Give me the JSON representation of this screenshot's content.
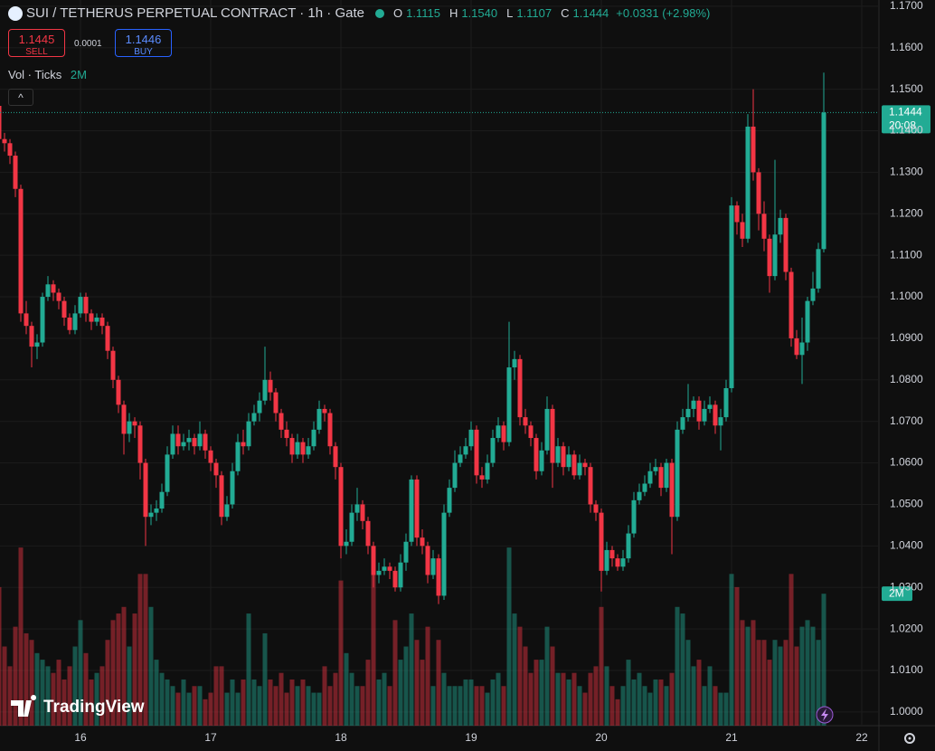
{
  "header": {
    "title": "SUI / TETHERUS PERPETUAL CONTRACT · 1h · Gate",
    "o_label": "O",
    "o": "1.1115",
    "h_label": "H",
    "h": "1.1540",
    "l_label": "L",
    "l": "1.1107",
    "c_label": "C",
    "c": "1.1444",
    "change": "+0.0331 (+2.98%)"
  },
  "trade": {
    "sell_price": "1.1445",
    "sell_label": "SELL",
    "spread": "0.0001",
    "buy_price": "1.1446",
    "buy_label": "BUY"
  },
  "watermark": "TradingView",
  "chart_data": {
    "type": "candlestick",
    "up_color": "#22ab94",
    "down_color": "#f23645",
    "grid": true,
    "ylim": [
      0.9967,
      1.1715
    ],
    "yticks": [
      {
        "value": 1.17,
        "label": "1.1700"
      },
      {
        "value": 1.16,
        "label": "1.1600"
      },
      {
        "value": 1.15,
        "label": "1.1500"
      },
      {
        "value": 1.14,
        "label": "1.1400"
      },
      {
        "value": 1.13,
        "label": "1.1300"
      },
      {
        "value": 1.12,
        "label": "1.1200"
      },
      {
        "value": 1.11,
        "label": "1.1100"
      },
      {
        "value": 1.1,
        "label": "1.1000"
      },
      {
        "value": 1.09,
        "label": "1.0900"
      },
      {
        "value": 1.08,
        "label": "1.0800"
      },
      {
        "value": 1.07,
        "label": "1.0700"
      },
      {
        "value": 1.06,
        "label": "1.0600"
      },
      {
        "value": 1.05,
        "label": "1.0500"
      },
      {
        "value": 1.04,
        "label": "1.0400"
      },
      {
        "value": 1.03,
        "label": "1.0300"
      },
      {
        "value": 1.02,
        "label": "1.0200"
      },
      {
        "value": 1.01,
        "label": "1.0100"
      },
      {
        "value": 1,
        "label": "1.0000"
      }
    ],
    "last_price": {
      "value": 1.1444,
      "label": "1.1444",
      "countdown": "20:08"
    },
    "categories": [
      null,
      null,
      null,
      null,
      null,
      null,
      null,
      null,
      null,
      null,
      null,
      null,
      null,
      null,
      null,
      "16",
      null,
      null,
      null,
      null,
      null,
      null,
      null,
      null,
      null,
      null,
      null,
      null,
      null,
      null,
      null,
      null,
      null,
      null,
      null,
      null,
      null,
      null,
      null,
      "17",
      null,
      null,
      null,
      null,
      null,
      null,
      null,
      null,
      null,
      null,
      null,
      null,
      null,
      null,
      null,
      null,
      null,
      null,
      null,
      null,
      null,
      null,
      null,
      "18",
      null,
      null,
      null,
      null,
      null,
      null,
      null,
      null,
      null,
      null,
      null,
      null,
      null,
      null,
      null,
      null,
      null,
      null,
      null,
      null,
      null,
      null,
      null,
      "19",
      null,
      null,
      null,
      null,
      null,
      null,
      null,
      null,
      null,
      null,
      null,
      null,
      null,
      null,
      null,
      null,
      null,
      null,
      null,
      null,
      null,
      null,
      null,
      "20",
      null,
      null,
      null,
      null,
      null,
      null,
      null,
      null,
      null,
      null,
      null,
      null,
      null,
      null,
      null,
      null,
      null,
      null,
      null,
      null,
      null,
      null,
      null,
      "21",
      null,
      null,
      null,
      null,
      null,
      null,
      null,
      null,
      null,
      null,
      null,
      null,
      null,
      null,
      null,
      null,
      null,
      null,
      null,
      null,
      null,
      null,
      null,
      "22",
      null,
      null
    ],
    "open": [
      1.146,
      1.138,
      1.137,
      1.134,
      1.126,
      1.096,
      1.093,
      1.088,
      1.089,
      1.1,
      1.103,
      1.101,
      1.099,
      1.095,
      1.092,
      1.096,
      1.1,
      1.096,
      1.094,
      1.095,
      1.093,
      1.087,
      1.08,
      1.074,
      1.067,
      1.07,
      1.069,
      1.06,
      1.047,
      1.048,
      1.049,
      1.053,
      1.062,
      1.067,
      1.064,
      1.065,
      1.066,
      1.064,
      1.067,
      1.063,
      1.06,
      1.057,
      1.047,
      1.05,
      1.058,
      1.065,
      1.064,
      1.07,
      1.072,
      1.075,
      1.08,
      1.077,
      1.072,
      1.068,
      1.066,
      1.062,
      1.065,
      1.062,
      1.064,
      1.068,
      1.073,
      1.072,
      1.064,
      1.059,
      1.04,
      1.041,
      1.048,
      1.05,
      1.046,
      1.04,
      1.033,
      1.034,
      1.035,
      1.034,
      1.03,
      1.036,
      1.041,
      1.056,
      1.042,
      1.04,
      1.033,
      1.037,
      1.028,
      1.048,
      1.054,
      1.06,
      1.062,
      1.064,
      1.068,
      1.057,
      1.056,
      1.06,
      1.066,
      1.069,
      1.065,
      1.083,
      1.085,
      1.071,
      1.069,
      1.066,
      1.058,
      1.063,
      1.073,
      1.06,
      1.064,
      1.059,
      1.062,
      1.057,
      1.06,
      1.059,
      1.05,
      1.048,
      1.034,
      1.039,
      1.037,
      1.035,
      1.037,
      1.043,
      1.051,
      1.053,
      1.055,
      1.058,
      1.059,
      1.054,
      1.06,
      1.047,
      1.068,
      1.071,
      1.073,
      1.075,
      1.07,
      1.073,
      1.074,
      1.069,
      1.071,
      1.078,
      1.122,
      1.118,
      1.114,
      1.141,
      1.13,
      1.12,
      1.114,
      1.105,
      1.115,
      1.119,
      1.106,
      1.09,
      1.086,
      1.089,
      1.099,
      1.102,
      1.1115,
      null,
      null,
      null,
      null,
      null,
      null,
      null,
      null,
      null
    ],
    "high": [
      1.1465,
      1.1395,
      1.138,
      1.135,
      1.127,
      1.099,
      1.094,
      1.091,
      1.101,
      1.105,
      1.104,
      1.102,
      1.1,
      1.096,
      1.098,
      1.101,
      1.101,
      1.097,
      1.096,
      1.096,
      1.094,
      1.088,
      1.081,
      1.075,
      1.072,
      1.071,
      1.07,
      1.061,
      1.05,
      1.051,
      1.055,
      1.064,
      1.069,
      1.069,
      1.067,
      1.068,
      1.067,
      1.07,
      1.068,
      1.064,
      1.061,
      1.058,
      1.052,
      1.06,
      1.067,
      1.068,
      1.072,
      1.074,
      1.077,
      1.088,
      1.082,
      1.078,
      1.073,
      1.07,
      1.067,
      1.067,
      1.066,
      1.066,
      1.07,
      1.075,
      1.074,
      1.073,
      1.065,
      1.06,
      1.044,
      1.05,
      1.054,
      1.051,
      1.047,
      1.041,
      1.036,
      1.037,
      1.036,
      1.035,
      1.038,
      1.043,
      1.057,
      1.057,
      1.044,
      1.041,
      1.039,
      1.038,
      1.05,
      1.056,
      1.063,
      1.064,
      1.066,
      1.07,
      1.069,
      1.059,
      1.062,
      1.068,
      1.071,
      1.07,
      1.094,
      1.087,
      1.086,
      1.073,
      1.07,
      1.067,
      1.065,
      1.076,
      1.074,
      1.066,
      1.065,
      1.064,
      1.063,
      1.062,
      1.061,
      1.06,
      1.051,
      1.049,
      1.041,
      1.04,
      1.038,
      1.039,
      1.045,
      1.053,
      1.055,
      1.057,
      1.06,
      1.061,
      1.06,
      1.061,
      1.061,
      1.07,
      1.073,
      1.079,
      1.076,
      1.076,
      1.075,
      1.076,
      1.075,
      1.073,
      1.08,
      1.124,
      1.123,
      1.12,
      1.144,
      1.15,
      1.131,
      1.123,
      1.115,
      1.133,
      1.121,
      1.12,
      1.107,
      1.092,
      1.095,
      1.1,
      1.106,
      1.113,
      1.154,
      null,
      null,
      null,
      null,
      null,
      null,
      null,
      null,
      null
    ],
    "low": [
      1.137,
      1.135,
      1.132,
      1.124,
      1.094,
      1.091,
      1.083,
      1.085,
      1.088,
      1.099,
      1.099,
      1.097,
      1.093,
      1.091,
      1.091,
      1.095,
      1.094,
      1.092,
      1.093,
      1.091,
      1.085,
      1.078,
      1.072,
      1.062,
      1.065,
      1.066,
      1.056,
      1.04,
      1.045,
      1.046,
      1.048,
      1.052,
      1.061,
      1.062,
      1.063,
      1.063,
      1.062,
      1.063,
      1.061,
      1.058,
      1.054,
      1.045,
      1.046,
      1.049,
      1.057,
      1.062,
      1.063,
      1.069,
      1.07,
      1.074,
      1.075,
      1.07,
      1.066,
      1.064,
      1.06,
      1.061,
      1.06,
      1.061,
      1.063,
      1.067,
      1.07,
      1.062,
      1.056,
      1.037,
      1.038,
      1.04,
      1.046,
      1.044,
      1.038,
      1.03,
      1.031,
      1.033,
      1.032,
      1.029,
      1.029,
      1.034,
      1.04,
      1.04,
      1.038,
      1.031,
      1.032,
      1.026,
      1.027,
      1.047,
      1.053,
      1.059,
      1.061,
      1.063,
      1.055,
      1.054,
      1.055,
      1.059,
      1.065,
      1.063,
      1.064,
      1.08,
      1.069,
      1.067,
      1.064,
      1.056,
      1.057,
      1.062,
      1.054,
      1.059,
      1.057,
      1.058,
      1.056,
      1.056,
      1.057,
      1.048,
      1.046,
      1.029,
      1.033,
      1.035,
      1.034,
      1.034,
      1.036,
      1.042,
      1.05,
      1.052,
      1.054,
      1.057,
      1.052,
      1.053,
      1.038,
      1.046,
      1.067,
      1.07,
      1.071,
      1.068,
      1.069,
      1.072,
      1.067,
      1.063,
      1.07,
      1.077,
      1.115,
      1.112,
      1.113,
      1.128,
      1.116,
      1.111,
      1.101,
      1.104,
      1.113,
      1.104,
      1.088,
      1.085,
      1.079,
      1.087,
      1.098,
      1.101,
      1.1107,
      null,
      null,
      null,
      null,
      null,
      null,
      null,
      null,
      null
    ],
    "close": [
      1.138,
      1.137,
      1.134,
      1.126,
      1.096,
      1.093,
      1.088,
      1.089,
      1.1,
      1.103,
      1.101,
      1.099,
      1.095,
      1.092,
      1.096,
      1.1,
      1.096,
      1.094,
      1.095,
      1.093,
      1.087,
      1.08,
      1.074,
      1.067,
      1.07,
      1.069,
      1.06,
      1.047,
      1.048,
      1.049,
      1.053,
      1.062,
      1.067,
      1.064,
      1.065,
      1.066,
      1.064,
      1.067,
      1.063,
      1.06,
      1.057,
      1.047,
      1.05,
      1.058,
      1.065,
      1.064,
      1.07,
      1.072,
      1.075,
      1.08,
      1.077,
      1.072,
      1.068,
      1.066,
      1.062,
      1.065,
      1.062,
      1.064,
      1.068,
      1.073,
      1.072,
      1.064,
      1.059,
      1.04,
      1.041,
      1.048,
      1.05,
      1.046,
      1.04,
      1.033,
      1.034,
      1.035,
      1.034,
      1.03,
      1.036,
      1.041,
      1.056,
      1.042,
      1.04,
      1.033,
      1.037,
      1.028,
      1.048,
      1.054,
      1.06,
      1.062,
      1.064,
      1.068,
      1.057,
      1.056,
      1.06,
      1.066,
      1.069,
      1.065,
      1.083,
      1.085,
      1.071,
      1.069,
      1.066,
      1.058,
      1.063,
      1.073,
      1.06,
      1.064,
      1.059,
      1.062,
      1.057,
      1.06,
      1.059,
      1.05,
      1.048,
      1.034,
      1.039,
      1.037,
      1.035,
      1.037,
      1.043,
      1.051,
      1.053,
      1.055,
      1.058,
      1.059,
      1.054,
      1.06,
      1.047,
      1.068,
      1.071,
      1.073,
      1.075,
      1.07,
      1.073,
      1.074,
      1.069,
      1.071,
      1.078,
      1.122,
      1.118,
      1.114,
      1.141,
      1.13,
      1.12,
      1.114,
      1.105,
      1.115,
      1.119,
      1.106,
      1.09,
      1.086,
      1.089,
      1.099,
      1.102,
      1.1115,
      1.1444,
      null,
      null,
      null,
      null,
      null,
      null,
      null,
      null,
      null
    ],
    "volume": {
      "name": "Vol · Ticks",
      "last_value_label": "2M",
      "ylim": [
        0,
        11000000
      ],
      "values": [
        2100000,
        1200000,
        900000,
        1500000,
        2700000,
        1400000,
        1300000,
        1100000,
        1000000,
        900000,
        800000,
        1000000,
        700000,
        900000,
        1200000,
        1600000,
        1100000,
        700000,
        800000,
        900000,
        1300000,
        1600000,
        1700000,
        1800000,
        1200000,
        1700000,
        2300000,
        2300000,
        1800000,
        1000000,
        800000,
        700000,
        600000,
        500000,
        700000,
        500000,
        600000,
        600000,
        400000,
        500000,
        900000,
        900000,
        500000,
        700000,
        500000,
        700000,
        1700000,
        700000,
        600000,
        1400000,
        700000,
        600000,
        800000,
        500000,
        700000,
        600000,
        700000,
        600000,
        500000,
        500000,
        900000,
        600000,
        800000,
        2200000,
        1100000,
        800000,
        600000,
        600000,
        1000000,
        2700000,
        700000,
        800000,
        600000,
        1600000,
        1000000,
        1200000,
        1700000,
        1300000,
        1000000,
        1500000,
        600000,
        1300000,
        800000,
        600000,
        600000,
        600000,
        700000,
        700000,
        600000,
        600000,
        500000,
        700000,
        800000,
        600000,
        2700000,
        1700000,
        1500000,
        1200000,
        800000,
        1000000,
        1000000,
        1500000,
        1200000,
        800000,
        800000,
        700000,
        800000,
        600000,
        500000,
        800000,
        900000,
        1800000,
        900000,
        600000,
        400000,
        600000,
        1000000,
        700000,
        800000,
        600000,
        500000,
        700000,
        700000,
        600000,
        800000,
        1800000,
        1700000,
        1300000,
        900000,
        1000000,
        600000,
        900000,
        600000,
        500000,
        500000,
        2300000,
        2100000,
        1600000,
        1500000,
        1600000,
        1300000,
        1300000,
        1000000,
        1300000,
        1200000,
        1300000,
        2300000,
        1200000,
        1500000,
        1600000,
        1500000,
        1300000,
        2000000,
        null,
        null,
        null,
        null,
        null,
        null,
        null,
        null,
        null
      ]
    }
  }
}
